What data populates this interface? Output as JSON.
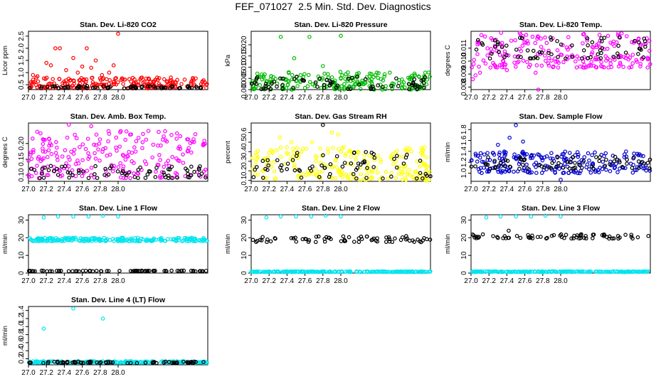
{
  "page": {
    "title": "FEF_071027  2.5 Min. Std. Dev. Diagnostics"
  },
  "chart_data": [
    {
      "type": "scatter",
      "title": "Stan. Dev. Li-820 CO2",
      "ylabel": "Licor ppm",
      "xlim": [
        27.0,
        29.0
      ],
      "ylim": [
        0.3,
        2.7
      ],
      "xticks": [
        "27.0",
        "27.2",
        "27.4",
        "27.6",
        "27.8",
        "28.0"
      ],
      "yticks": [
        "0.5",
        "1.0",
        "1.5",
        "2.0",
        "2.5"
      ],
      "series": [
        {
          "color": "#ff0000",
          "band": [
            0.35,
            0.8
          ],
          "outliers": [
            [
              27.05,
              0.9
            ],
            [
              27.1,
              0.85
            ],
            [
              27.2,
              1.4
            ],
            [
              27.25,
              1.3
            ],
            [
              27.3,
              2.0
            ],
            [
              27.35,
              2.0
            ],
            [
              27.42,
              1.1
            ],
            [
              27.5,
              1.6
            ],
            [
              27.55,
              1.0
            ],
            [
              27.6,
              1.25
            ],
            [
              27.65,
              2.0
            ],
            [
              27.7,
              1.2
            ],
            [
              27.75,
              1.5
            ],
            [
              27.82,
              0.9
            ],
            [
              27.9,
              1.0
            ],
            [
              27.95,
              1.3
            ],
            [
              28.0,
              2.6
            ]
          ]
        },
        {
          "color": "#000000",
          "band": [
            0.35,
            0.45
          ],
          "outliers": []
        }
      ]
    },
    {
      "type": "scatter",
      "title": "Stan. Dev. Li-820 Pressure",
      "ylabel": "kPa",
      "xlim": [
        27.0,
        29.0
      ],
      "ylim": [
        0.0,
        0.026
      ],
      "xticks": [
        "27.0",
        "27.2",
        "27.4",
        "27.6",
        "27.8",
        "28.0"
      ],
      "yticks": [
        "0.000",
        "0.005",
        "0.010",
        "0.015",
        "0.020"
      ],
      "series": [
        {
          "color": "#00bb00",
          "band": [
            0.0,
            0.008
          ],
          "outliers": [
            [
              27.33,
              0.0235
            ],
            [
              27.48,
              0.014
            ],
            [
              27.65,
              0.0235
            ],
            [
              27.8,
              0.0105
            ],
            [
              28.0,
              0.024
            ]
          ]
        },
        {
          "color": "#000000",
          "band": [
            0.0,
            0.006
          ],
          "outliers": []
        }
      ]
    },
    {
      "type": "scatter",
      "title": "Stan. Dev. Li-820 Temp.",
      "ylabel": "degrees C",
      "xlim": [
        27.0,
        29.0
      ],
      "ylim": [
        0.0078,
        0.0123
      ],
      "xticks": [
        "27.0",
        "27.2",
        "27.4",
        "27.6",
        "27.8",
        "28.0"
      ],
      "yticks": [
        "0.008",
        "0.009",
        "0.010",
        "0.011"
      ],
      "series": [
        {
          "color": "#ff00ff",
          "band": [
            0.0095,
            0.0122
          ],
          "outliers": [
            [
              27.02,
              0.0086
            ],
            [
              27.05,
              0.0089
            ],
            [
              27.1,
              0.0091
            ],
            [
              27.4,
              0.0093
            ],
            [
              27.72,
              0.0091
            ],
            [
              27.75,
              0.0078
            ]
          ]
        },
        {
          "color": "#000000",
          "band": [
            0.0102,
            0.0119
          ],
          "outliers": []
        }
      ]
    },
    {
      "type": "scatter",
      "title": "Stan. Dev. Amb. Box Temp.",
      "ylabel": "degrees C",
      "xlim": [
        27.0,
        29.0
      ],
      "ylim": [
        0.08,
        0.265
      ],
      "xticks": [
        "27.0",
        "27.2",
        "27.4",
        "27.6",
        "27.8",
        "28.0"
      ],
      "yticks": [
        "0.10",
        "0.15",
        "0.20"
      ],
      "series": [
        {
          "color": "#ff00ff",
          "band": [
            0.09,
            0.24
          ],
          "outliers": [
            [
              27.45,
              0.26
            ],
            [
              27.7,
              0.255
            ]
          ]
        },
        {
          "color": "#000000",
          "band": [
            0.09,
            0.13
          ],
          "outliers": []
        }
      ]
    },
    {
      "type": "scatter",
      "title": "Stan. Dev. Gas Stream RH",
      "ylabel": "percent",
      "xlim": [
        27.0,
        29.0
      ],
      "ylim": [
        0.09,
        0.7
      ],
      "xticks": [
        "27.0",
        "27.2",
        "27.4",
        "27.6",
        "27.8",
        "28.0"
      ],
      "yticks": [
        "0.1",
        "0.2",
        "0.3",
        "0.4",
        "0.5",
        "0.6"
      ],
      "series": [
        {
          "color": "#ffff00",
          "band": [
            0.1,
            0.45
          ],
          "outliers": [
            [
              27.32,
              0.55
            ],
            [
              27.45,
              0.5
            ],
            [
              27.68,
              0.5
            ],
            [
              27.9,
              0.6
            ],
            [
              27.97,
              0.58
            ]
          ]
        },
        {
          "color": "#000000",
          "band": [
            0.12,
            0.4
          ],
          "outliers": [
            [
              27.8,
              0.68
            ]
          ]
        }
      ]
    },
    {
      "type": "scatter",
      "title": "Stan. Dev. Sample Flow",
      "ylabel": "ml/min",
      "xlim": [
        27.0,
        29.0
      ],
      "ylim": [
        0.85,
        1.92
      ],
      "xticks": [
        "27.0",
        "27.2",
        "27.4",
        "27.6",
        "27.8",
        "28.0"
      ],
      "yticks": [
        "1.0",
        "1.2",
        "1.4",
        "1.6",
        "1.8"
      ],
      "series": [
        {
          "color": "#0000cc",
          "band": [
            1.0,
            1.4
          ],
          "outliers": [
            [
              27.3,
              1.52
            ],
            [
              27.43,
              1.65
            ],
            [
              27.5,
              1.88
            ],
            [
              27.58,
              1.58
            ],
            [
              28.0,
              0.88
            ]
          ]
        },
        {
          "color": "#000000",
          "band": [
            1.08,
            1.3
          ],
          "outliers": []
        }
      ]
    },
    {
      "type": "scatter",
      "title": "Stan. Dev. Line 1 Flow",
      "ylabel": "ml/min",
      "xlim": [
        27.0,
        29.0
      ],
      "ylim": [
        0,
        33
      ],
      "xticks": [
        "27.0",
        "27.2",
        "27.4",
        "27.6",
        "27.8",
        "28.0"
      ],
      "yticks": [
        "0",
        "10",
        "20",
        "30"
      ],
      "series": [
        {
          "color": "#00e5ee",
          "band": [
            18,
            20
          ],
          "outliers": [
            [
              27.17,
              31.5
            ],
            [
              27.33,
              32
            ],
            [
              27.5,
              32
            ],
            [
              27.67,
              32
            ],
            [
              27.83,
              32.5
            ],
            [
              28.0,
              32
            ]
          ]
        },
        {
          "color": "#000000",
          "band": [
            1,
            1.4
          ],
          "outliers": []
        }
      ]
    },
    {
      "type": "scatter",
      "title": "Stan. Dev. Line 2 Flow",
      "ylabel": "ml/min",
      "xlim": [
        27.0,
        29.0
      ],
      "ylim": [
        0,
        33
      ],
      "xticks": [
        "27.0",
        "27.2",
        "27.4",
        "27.6",
        "27.8",
        "28.0"
      ],
      "yticks": [
        "0",
        "10",
        "20",
        "30"
      ],
      "series": [
        {
          "color": "#00e5ee",
          "band": [
            0.6,
            1.0
          ],
          "outliers": [
            [
              27.17,
              31.5
            ],
            [
              27.33,
              32
            ],
            [
              27.5,
              32
            ],
            [
              27.67,
              32
            ],
            [
              27.83,
              32.5
            ],
            [
              28.0,
              32
            ]
          ]
        },
        {
          "color": "#000000",
          "band": [
            17.5,
            21
          ],
          "outliers": []
        }
      ]
    },
    {
      "type": "scatter",
      "title": "Stan. Dev. Line 3 Flow",
      "ylabel": "ml/min",
      "xlim": [
        27.0,
        29.0
      ],
      "ylim": [
        0,
        33
      ],
      "xticks": [
        "27.0",
        "27.2",
        "27.4",
        "27.6",
        "27.8",
        "28.0"
      ],
      "yticks": [
        "0",
        "10",
        "20",
        "30"
      ],
      "series": [
        {
          "color": "#00e5ee",
          "band": [
            0.6,
            1.0
          ],
          "outliers": [
            [
              27.17,
              31.5
            ],
            [
              27.33,
              32
            ],
            [
              27.5,
              32
            ],
            [
              27.67,
              32
            ],
            [
              27.83,
              32.5
            ],
            [
              28.0,
              32
            ]
          ]
        },
        {
          "color": "#000000",
          "band": [
            19.5,
            22
          ],
          "outliers": [
            [
              27.42,
              24
            ]
          ]
        }
      ]
    },
    {
      "type": "scatter",
      "title": "Stan. Dev. Line 4 (LT) Flow",
      "ylabel": "ml/min",
      "xlim": [
        27.0,
        29.0
      ],
      "ylim": [
        0.05,
        1.5
      ],
      "xticks": [
        "27.0",
        "27.2",
        "27.4",
        "27.6",
        "27.8",
        "28.0"
      ],
      "yticks": [
        "0.2",
        "0.4",
        "0.6",
        "0.8",
        "1.0",
        "1.2",
        "1.4"
      ],
      "series": [
        {
          "color": "#00e5ee",
          "band": [
            0.1,
            0.14
          ],
          "outliers": [
            [
              27.17,
              0.95
            ],
            [
              27.5,
              1.45
            ],
            [
              27.83,
              1.2
            ]
          ]
        },
        {
          "color": "#000000",
          "band": [
            0.09,
            0.13
          ],
          "outliers": []
        }
      ]
    }
  ]
}
